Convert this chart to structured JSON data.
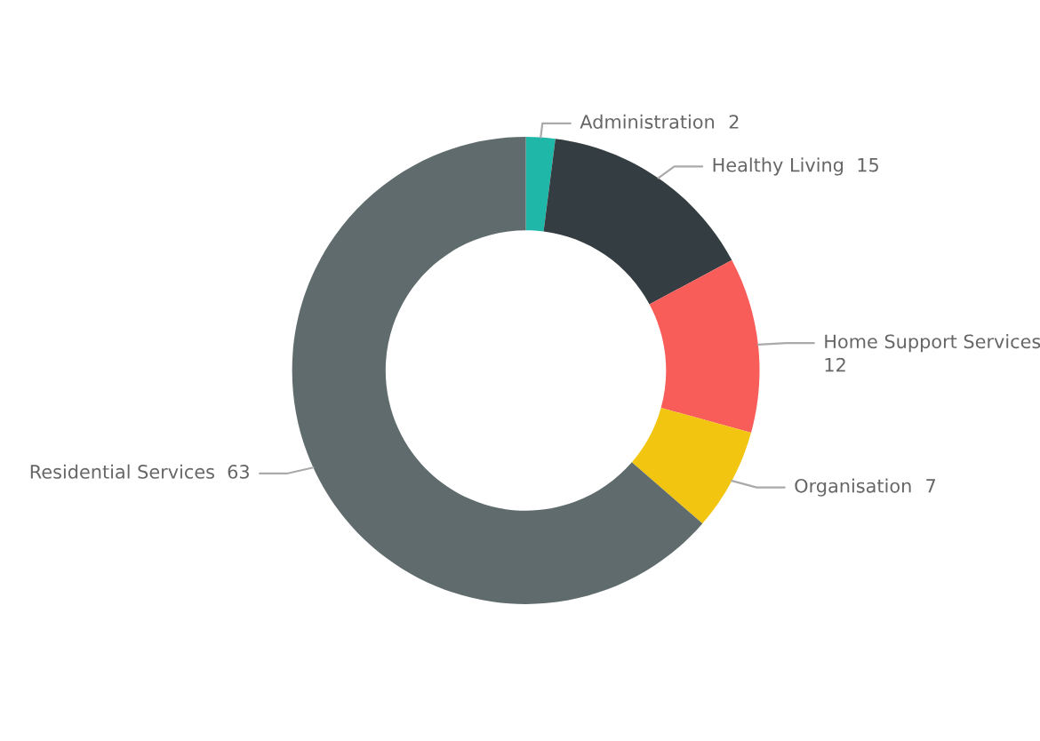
{
  "chart_data": {
    "type": "donut",
    "categories": [
      "Administration",
      "Healthy Living",
      "Home Support Services",
      "Organisation",
      "Residential Services"
    ],
    "values": [
      2,
      15,
      12,
      7,
      63
    ],
    "colors": [
      "#1fb8a8",
      "#333d42",
      "#f95d5a",
      "#f2c511",
      "#5f6b6d"
    ],
    "data_labels": true,
    "legend": false
  }
}
